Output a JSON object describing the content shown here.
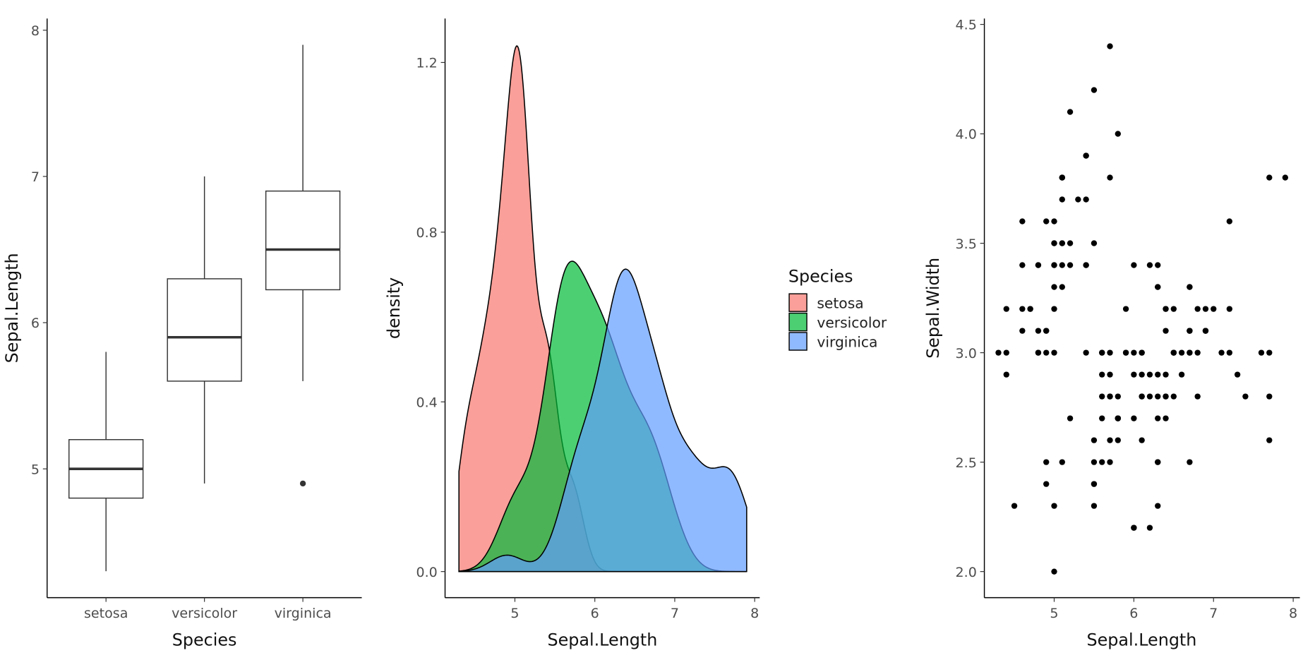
{
  "chart_data": [
    {
      "type": "box",
      "xlabel": "Species",
      "ylabel": "Sepal.Length",
      "categories": [
        "setosa",
        "versicolor",
        "virginica"
      ],
      "ylim": [
        4.12,
        8.08
      ],
      "yticks": [
        "5",
        "6",
        "7",
        "8"
      ],
      "boxes": [
        {
          "min": 4.3,
          "q1": 4.8,
          "median": 5.0,
          "q3": 5.2,
          "max": 5.8,
          "outliers": []
        },
        {
          "min": 4.9,
          "q1": 5.6,
          "median": 5.9,
          "q3": 6.3,
          "max": 7.0,
          "outliers": []
        },
        {
          "min": 5.6,
          "q1": 6.225,
          "median": 6.5,
          "q3": 6.9,
          "max": 7.9,
          "outliers": [
            4.9
          ]
        }
      ],
      "grid": false
    },
    {
      "type": "area",
      "subtype": "density",
      "xlabel": "Sepal.Length",
      "ylabel": "density",
      "xlim": [
        4.12,
        8.08
      ],
      "ylim": [
        -0.06,
        1.3
      ],
      "xticks": [
        "5",
        "6",
        "7",
        "8"
      ],
      "yticks": [
        "0.0",
        "0.4",
        "0.8",
        "1.2"
      ],
      "legend": {
        "title": "Species",
        "position": "right"
      },
      "series": [
        {
          "name": "setosa",
          "color": "#F8766D"
        },
        {
          "name": "versicolor",
          "color": "#00BA38"
        },
        {
          "name": "virginica",
          "color": "#619CFF"
        }
      ],
      "fill_alpha": 0.7,
      "grid": false
    },
    {
      "type": "scatter",
      "xlabel": "Sepal.Length",
      "ylabel": "Sepal.Width",
      "xlim": [
        4.12,
        8.08
      ],
      "ylim": [
        1.88,
        4.52
      ],
      "xticks": [
        "5",
        "6",
        "7",
        "8"
      ],
      "yticks": [
        "2.0",
        "2.5",
        "3.0",
        "3.5",
        "4.0",
        "4.5"
      ],
      "point_color": "#000000",
      "grid": false,
      "points": {
        "setosa": [
          [
            5.1,
            3.5
          ],
          [
            4.9,
            3.0
          ],
          [
            4.7,
            3.2
          ],
          [
            4.6,
            3.1
          ],
          [
            5.0,
            3.6
          ],
          [
            5.4,
            3.9
          ],
          [
            4.6,
            3.4
          ],
          [
            5.0,
            3.4
          ],
          [
            4.4,
            2.9
          ],
          [
            4.9,
            3.1
          ],
          [
            5.4,
            3.7
          ],
          [
            4.8,
            3.4
          ],
          [
            4.8,
            3.0
          ],
          [
            4.3,
            3.0
          ],
          [
            5.8,
            4.0
          ],
          [
            5.7,
            4.4
          ],
          [
            5.4,
            3.9
          ],
          [
            5.1,
            3.5
          ],
          [
            5.7,
            3.8
          ],
          [
            5.1,
            3.8
          ],
          [
            5.4,
            3.4
          ],
          [
            5.1,
            3.7
          ],
          [
            4.6,
            3.6
          ],
          [
            5.1,
            3.3
          ],
          [
            4.8,
            3.4
          ],
          [
            5.0,
            3.0
          ],
          [
            5.0,
            3.4
          ],
          [
            5.2,
            3.5
          ],
          [
            5.2,
            3.4
          ],
          [
            4.7,
            3.2
          ],
          [
            4.8,
            3.1
          ],
          [
            5.4,
            3.4
          ],
          [
            5.2,
            4.1
          ],
          [
            5.5,
            4.2
          ],
          [
            4.9,
            3.1
          ],
          [
            5.0,
            3.2
          ],
          [
            5.5,
            3.5
          ],
          [
            4.9,
            3.6
          ],
          [
            4.4,
            3.0
          ],
          [
            5.1,
            3.4
          ],
          [
            5.0,
            3.5
          ],
          [
            4.5,
            2.3
          ],
          [
            4.4,
            3.2
          ],
          [
            5.0,
            3.5
          ],
          [
            5.1,
            3.8
          ],
          [
            4.8,
            3.0
          ],
          [
            5.1,
            3.8
          ],
          [
            4.6,
            3.2
          ],
          [
            5.3,
            3.7
          ],
          [
            5.0,
            3.3
          ]
        ],
        "versicolor": [
          [
            7.0,
            3.2
          ],
          [
            6.4,
            3.2
          ],
          [
            6.9,
            3.1
          ],
          [
            5.5,
            2.3
          ],
          [
            6.5,
            2.8
          ],
          [
            5.7,
            2.8
          ],
          [
            6.3,
            3.3
          ],
          [
            4.9,
            2.4
          ],
          [
            6.6,
            2.9
          ],
          [
            5.2,
            2.7
          ],
          [
            5.0,
            2.0
          ],
          [
            5.9,
            3.0
          ],
          [
            6.0,
            2.2
          ],
          [
            6.1,
            2.9
          ],
          [
            5.6,
            2.9
          ],
          [
            6.7,
            3.1
          ],
          [
            5.6,
            3.0
          ],
          [
            5.8,
            2.7
          ],
          [
            6.2,
            2.2
          ],
          [
            5.6,
            2.5
          ],
          [
            5.9,
            3.2
          ],
          [
            6.1,
            2.8
          ],
          [
            6.3,
            2.5
          ],
          [
            6.1,
            2.8
          ],
          [
            6.4,
            2.9
          ],
          [
            6.6,
            3.0
          ],
          [
            6.8,
            2.8
          ],
          [
            6.7,
            3.0
          ],
          [
            6.0,
            2.9
          ],
          [
            5.7,
            2.6
          ],
          [
            5.5,
            2.4
          ],
          [
            5.5,
            2.4
          ],
          [
            5.8,
            2.7
          ],
          [
            6.0,
            2.7
          ],
          [
            5.4,
            3.0
          ],
          [
            6.0,
            3.4
          ],
          [
            6.7,
            3.1
          ],
          [
            6.3,
            2.3
          ],
          [
            5.6,
            3.0
          ],
          [
            5.5,
            2.5
          ],
          [
            5.5,
            2.6
          ],
          [
            6.1,
            3.0
          ],
          [
            5.8,
            2.6
          ],
          [
            5.0,
            2.3
          ],
          [
            5.6,
            2.7
          ],
          [
            5.7,
            3.0
          ],
          [
            5.7,
            2.9
          ],
          [
            6.2,
            2.9
          ],
          [
            5.1,
            2.5
          ],
          [
            5.7,
            2.8
          ]
        ],
        "virginica": [
          [
            6.3,
            3.3
          ],
          [
            5.8,
            2.7
          ],
          [
            7.1,
            3.0
          ],
          [
            6.3,
            2.9
          ],
          [
            6.5,
            3.0
          ],
          [
            7.6,
            3.0
          ],
          [
            4.9,
            2.5
          ],
          [
            7.3,
            2.9
          ],
          [
            6.7,
            2.5
          ],
          [
            7.2,
            3.6
          ],
          [
            6.5,
            3.2
          ],
          [
            6.4,
            2.7
          ],
          [
            6.8,
            3.0
          ],
          [
            5.7,
            2.5
          ],
          [
            5.8,
            2.8
          ],
          [
            6.4,
            3.2
          ],
          [
            6.5,
            3.0
          ],
          [
            7.7,
            3.8
          ],
          [
            7.7,
            2.6
          ],
          [
            6.0,
            2.2
          ],
          [
            6.9,
            3.2
          ],
          [
            5.6,
            2.8
          ],
          [
            7.7,
            2.8
          ],
          [
            6.3,
            2.7
          ],
          [
            6.7,
            3.3
          ],
          [
            7.2,
            3.2
          ],
          [
            6.2,
            2.8
          ],
          [
            6.1,
            3.0
          ],
          [
            6.4,
            2.8
          ],
          [
            7.2,
            3.0
          ],
          [
            7.4,
            2.8
          ],
          [
            7.9,
            3.8
          ],
          [
            6.4,
            2.8
          ],
          [
            6.3,
            2.8
          ],
          [
            6.1,
            2.6
          ],
          [
            7.7,
            3.0
          ],
          [
            6.3,
            3.4
          ],
          [
            6.4,
            3.1
          ],
          [
            6.0,
            3.0
          ],
          [
            6.9,
            3.1
          ],
          [
            6.7,
            3.1
          ],
          [
            6.9,
            3.1
          ],
          [
            5.8,
            2.7
          ],
          [
            6.8,
            3.2
          ],
          [
            6.7,
            3.3
          ],
          [
            6.7,
            3.0
          ],
          [
            6.3,
            2.5
          ],
          [
            6.5,
            3.0
          ],
          [
            6.2,
            3.4
          ],
          [
            5.9,
            3.0
          ]
        ]
      }
    }
  ]
}
